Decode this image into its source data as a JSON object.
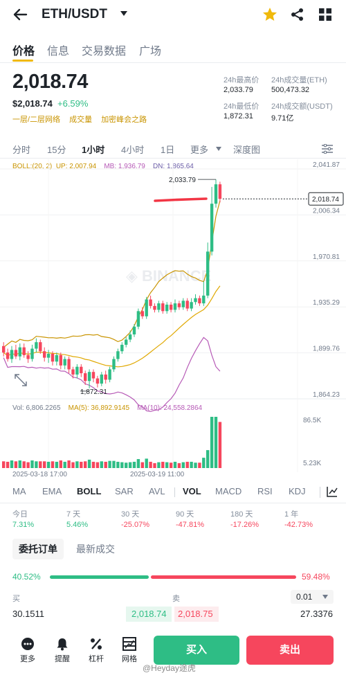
{
  "header": {
    "title": "ETH/USDT"
  },
  "tabs": [
    {
      "label": "价格",
      "active": true
    },
    {
      "label": "信息"
    },
    {
      "label": "交易数据"
    },
    {
      "label": "广场"
    }
  ],
  "ticker": {
    "price": "2,018.74",
    "price_usd": "$2,018.74",
    "change": "+6.59%",
    "tags": [
      "一层/二层网络",
      "成交量",
      "加密峰会之路"
    ],
    "stats": {
      "high_label": "24h最高价",
      "high": "2,033.79",
      "vol_eth_label": "24h成交量(ETH)",
      "vol_eth": "500,473.32",
      "low_label": "24h最低价",
      "low": "1,872.31",
      "vol_usdt_label": "24h成交额(USDT)",
      "vol_usdt": "9.71亿"
    }
  },
  "timeframes": [
    "分时",
    "15分",
    "1小时",
    "4小时",
    "1日",
    "更多",
    "深度图"
  ],
  "boll": {
    "label": "BOLL:(20, 2)",
    "up": "UP: 2,007.94",
    "mb": "MB: 1,936.79",
    "dn": "DN: 1,865.64"
  },
  "chart_data": {
    "type": "candlestick",
    "y_ticks": [
      "2,041.87",
      "2,006.34",
      "1,970.81",
      "1,935.29",
      "1,899.76",
      "1,864.23"
    ],
    "current_price": "2,018.74",
    "high_label": "2,033.79",
    "low_label": "1,872.31",
    "ylim": [
      1864.23,
      2041.87
    ],
    "candles": [
      [
        1905,
        1900,
        1908,
        1897
      ],
      [
        1900,
        1895,
        1903,
        1893
      ],
      [
        1895,
        1902,
        1905,
        1892
      ],
      [
        1902,
        1897,
        1906,
        1895
      ],
      [
        1897,
        1904,
        1907,
        1894
      ],
      [
        1904,
        1898,
        1907,
        1896
      ],
      [
        1898,
        1895,
        1901,
        1892
      ],
      [
        1895,
        1903,
        1906,
        1893
      ],
      [
        1903,
        1908,
        1911,
        1900
      ],
      [
        1908,
        1901,
        1910,
        1899
      ],
      [
        1901,
        1896,
        1904,
        1893
      ],
      [
        1896,
        1899,
        1902,
        1892
      ],
      [
        1899,
        1893,
        1901,
        1890
      ],
      [
        1893,
        1898,
        1900,
        1890
      ],
      [
        1898,
        1890,
        1900,
        1887
      ],
      [
        1890,
        1895,
        1897,
        1887
      ],
      [
        1895,
        1887,
        1897,
        1884
      ],
      [
        1887,
        1883,
        1889,
        1880
      ],
      [
        1883,
        1889,
        1891,
        1880
      ],
      [
        1889,
        1884,
        1891,
        1881
      ],
      [
        1884,
        1878,
        1886,
        1875
      ],
      [
        1878,
        1885,
        1887,
        1872.31
      ],
      [
        1885,
        1880,
        1887,
        1877
      ],
      [
        1880,
        1876,
        1882,
        1873
      ],
      [
        1876,
        1883,
        1885,
        1874
      ],
      [
        1883,
        1879,
        1886,
        1876
      ],
      [
        1879,
        1887,
        1889,
        1877
      ],
      [
        1887,
        1895,
        1897,
        1885
      ],
      [
        1895,
        1901,
        1903,
        1893
      ],
      [
        1901,
        1906,
        1908,
        1899
      ],
      [
        1906,
        1910,
        1912,
        1904
      ],
      [
        1910,
        1914,
        1917,
        1908
      ],
      [
        1914,
        1920,
        1922,
        1912
      ],
      [
        1920,
        1932,
        1934,
        1918
      ],
      [
        1932,
        1928,
        1935,
        1926
      ],
      [
        1928,
        1941,
        1943,
        1926
      ],
      [
        1941,
        1936,
        1944,
        1934
      ],
      [
        1936,
        1933,
        1938,
        1931
      ],
      [
        1933,
        1938,
        1940,
        1931
      ],
      [
        1938,
        1932,
        1940,
        1930
      ],
      [
        1932,
        1937,
        1939,
        1930
      ],
      [
        1937,
        1933,
        1939,
        1931
      ],
      [
        1933,
        1938,
        1941,
        1931
      ],
      [
        1938,
        1935,
        1940,
        1933
      ],
      [
        1935,
        1940,
        1942,
        1933
      ],
      [
        1940,
        1934,
        1942,
        1932
      ],
      [
        1934,
        1939,
        1942,
        1932
      ],
      [
        1939,
        1942,
        1945,
        1937
      ],
      [
        1942,
        1938,
        1944,
        1936
      ],
      [
        1938,
        1944,
        1955,
        1936
      ],
      [
        1944,
        1978,
        1985,
        1942
      ],
      [
        1978,
        2015,
        2028,
        1975
      ],
      [
        2015,
        2030,
        2033.79,
        2012
      ],
      [
        2030,
        2018.74,
        2032,
        2016
      ]
    ]
  },
  "vol": {
    "vol": "Vol: 6,806.2265",
    "ma5": "MA(5): 36,892.9145",
    "ma10": "MA(10): 24,558.2864",
    "y_top": "86.5K",
    "y_bot": "5.23K"
  },
  "x_labels": [
    "2025-03-18 17:00",
    "2025-03-19 11:00"
  ],
  "indicators": [
    "MA",
    "EMA",
    "BOLL",
    "SAR",
    "AVL",
    "VOL",
    "MACD",
    "RSI",
    "KDJ"
  ],
  "performance": [
    {
      "label": "今日",
      "value": "7.31%",
      "dir": "pos"
    },
    {
      "label": "7 天",
      "value": "5.46%",
      "dir": "pos"
    },
    {
      "label": "30 天",
      "value": "-25.07%",
      "dir": "neg"
    },
    {
      "label": "90 天",
      "value": "-47.81%",
      "dir": "neg"
    },
    {
      "label": "180 天",
      "value": "-17.26%",
      "dir": "neg"
    },
    {
      "label": "1 年",
      "value": "-42.73%",
      "dir": "neg"
    }
  ],
  "orderbook": {
    "tab_active": "委托订单",
    "tab_other": "最新成交",
    "buy_pct": "40.52%",
    "sell_pct": "59.48%",
    "buy_label": "买",
    "sell_label": "卖",
    "precision": "0.01",
    "rows": [
      {
        "bid_qty": "30.1511",
        "bid": "2,018.74",
        "ask": "2,018.75",
        "ask_qty": "27.3376"
      }
    ]
  },
  "bottom": {
    "items": [
      "更多",
      "提醒",
      "杠杆",
      "网格"
    ],
    "buy": "买入",
    "sell": "卖出",
    "watermark": "@Heyday途虎"
  }
}
